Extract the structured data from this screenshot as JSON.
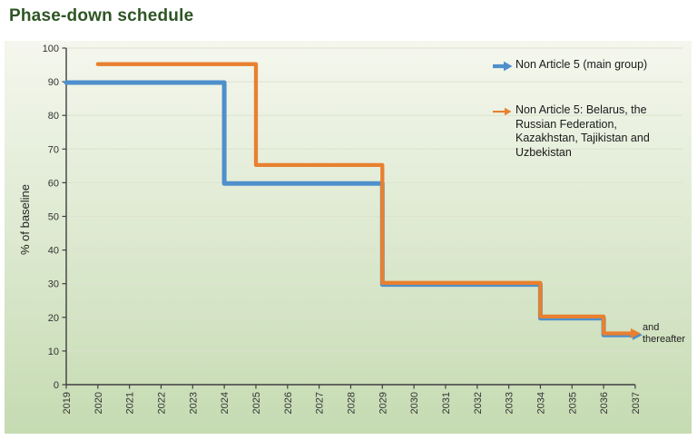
{
  "page": {
    "title": "Phase-down schedule"
  },
  "chart_data": {
    "type": "line",
    "subtype": "step",
    "title": "Phase-down schedule",
    "xlabel": "",
    "ylabel": "% of baseline",
    "ylim": [
      0,
      100
    ],
    "yticks": [
      0,
      10,
      20,
      30,
      40,
      50,
      60,
      70,
      80,
      90,
      100
    ],
    "xticks": [
      "2019",
      "2020",
      "2021",
      "2022",
      "2023",
      "2024",
      "2025",
      "2026",
      "2027",
      "2028",
      "2029",
      "2030",
      "2031",
      "2032",
      "2033",
      "2034",
      "2035",
      "2036",
      "2037"
    ],
    "grid": true,
    "legend_position": "inside-top-right",
    "annotation": "and thereafter",
    "theme": {
      "title_color": "#2E5524",
      "axis_color": "#3F3F3F",
      "grid_color": "#DCE2D0",
      "tick_text_color": "#333333",
      "annotation_color": "#222222",
      "panel_top": "#F5F7EE",
      "panel_bottom": "#C5DBB2"
    },
    "series": [
      {
        "name": "Non Article 5 (main group)",
        "marker": "blue-arrow",
        "color": "#4E8FCC",
        "arrow_end": true,
        "points": [
          [
            2019,
            90
          ],
          [
            2024,
            90
          ],
          [
            2024,
            60
          ],
          [
            2029,
            60
          ],
          [
            2029,
            30
          ],
          [
            2034,
            30
          ],
          [
            2034,
            20
          ],
          [
            2036,
            20
          ],
          [
            2036,
            15
          ],
          [
            2037,
            15
          ]
        ]
      },
      {
        "name": "Non Article 5: Belarus, the Russian Federation, Kazakhstan, Tajikistan and Uzbekistan",
        "marker": "orange-arrow",
        "color": "#E8802F",
        "arrow_end": true,
        "points": [
          [
            2020,
            95
          ],
          [
            2025,
            95
          ],
          [
            2025,
            65
          ],
          [
            2029,
            65
          ],
          [
            2029,
            30
          ],
          [
            2034,
            30
          ],
          [
            2034,
            20
          ],
          [
            2036,
            20
          ],
          [
            2036,
            15
          ],
          [
            2037,
            15
          ]
        ]
      }
    ]
  }
}
